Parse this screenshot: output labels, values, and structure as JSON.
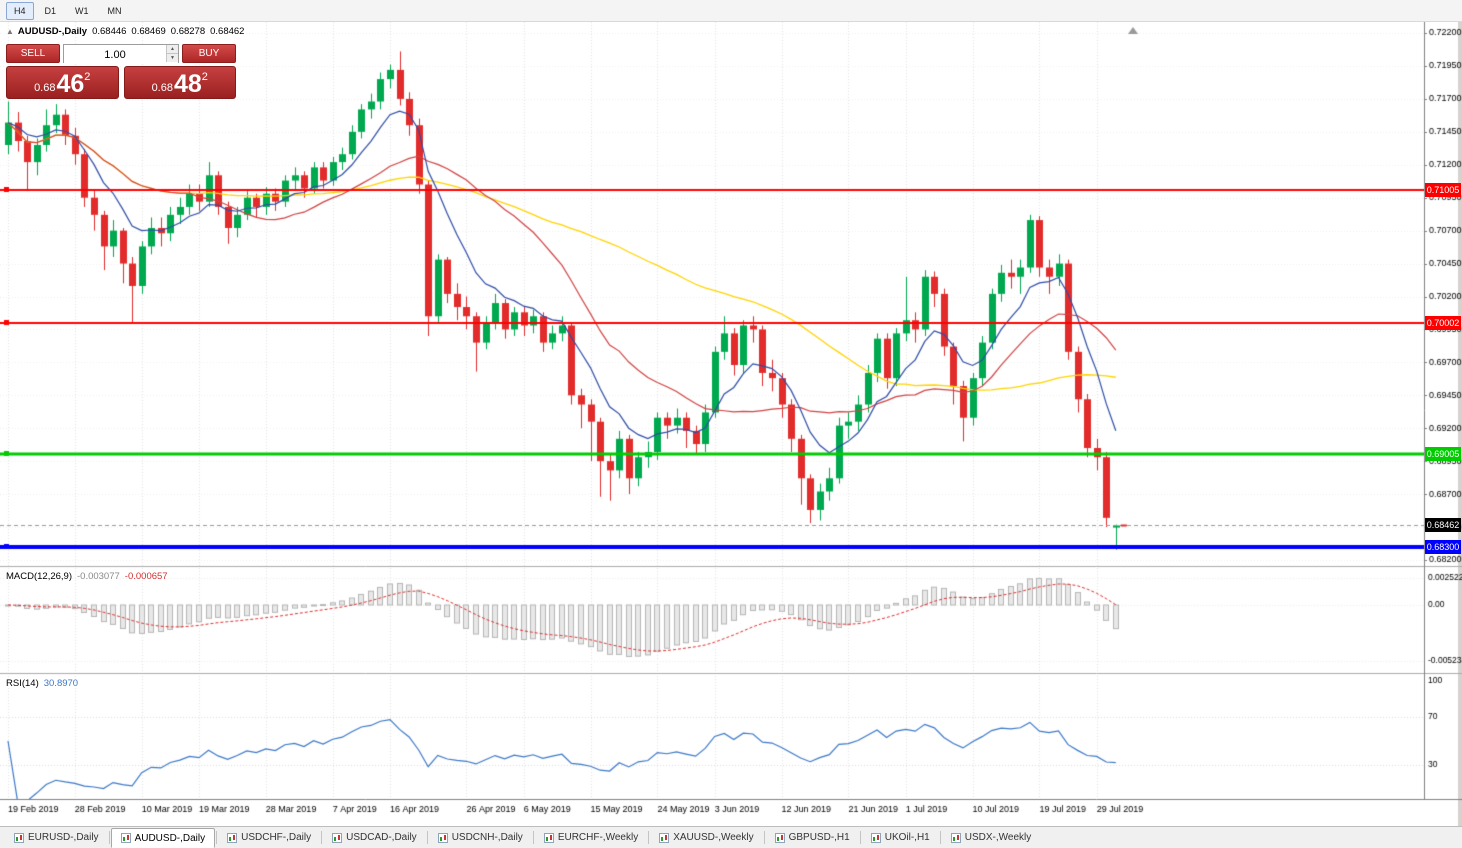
{
  "toolbar": {
    "timeframes": [
      "H4",
      "D1",
      "W1",
      "MN"
    ],
    "active": "H4"
  },
  "chart_header": {
    "collapse_icon": "▲",
    "symbol": "AUDUSD-,Daily",
    "open": "0.68446",
    "high": "0.68469",
    "low": "0.68278",
    "close": "0.68462"
  },
  "trade_panel": {
    "sell_label": "SELL",
    "buy_label": "BUY",
    "volume": "1.00",
    "spinner_up": "▲",
    "spinner_down": "▼",
    "sell_price": {
      "prefix": "0.68",
      "big": "46",
      "sup": "2"
    },
    "buy_price": {
      "prefix": "0.68",
      "big": "48",
      "sup": "2"
    }
  },
  "indicators": {
    "macd": {
      "label": "MACD(12,26,9)",
      "value_main": "-0.003077",
      "value_signal": "-0.000657"
    },
    "rsi": {
      "label": "RSI(14)",
      "value": "30.8970"
    }
  },
  "tabs": {
    "items": [
      "EURUSD-,Daily",
      "AUDUSD-,Daily",
      "USDCHF-,Daily",
      "USDCAD-,Daily",
      "USDCNH-,Daily",
      "EURCHF-,Weekly",
      "XAUUSD-,Weekly",
      "GBPUSD-,H1",
      "UKOil-,H1",
      "USDX-,Weekly"
    ],
    "active": "AUDUSD-,Daily"
  },
  "chart_data": {
    "type": "candlestick",
    "symbol": "AUDUSD",
    "timeframe": "Daily",
    "bull_color": "#00A94F",
    "bear_color": "#E22C2C",
    "y_ticks": [
      "0.72200",
      "0.71950",
      "0.71700",
      "0.71450",
      "0.71200",
      "0.70950",
      "0.70700",
      "0.70450",
      "0.70200",
      "0.69950",
      "0.69700",
      "0.69450",
      "0.69200",
      "0.68950",
      "0.68700",
      "0.68450",
      "0.68200"
    ],
    "x_labels": [
      [
        0,
        "19 Feb 2019"
      ],
      [
        7,
        "28 Feb 2019"
      ],
      [
        14,
        "10 Mar 2019"
      ],
      [
        20,
        "19 Mar 2019"
      ],
      [
        27,
        "28 Mar 2019"
      ],
      [
        34,
        "7 Apr 2019"
      ],
      [
        40,
        "16 Apr 2019"
      ],
      [
        48,
        "26 Apr 2019"
      ],
      [
        54,
        "6 May 2019"
      ],
      [
        61,
        "15 May 2019"
      ],
      [
        68,
        "24 May 2019"
      ],
      [
        74,
        "3 Jun 2019"
      ],
      [
        81,
        "12 Jun 2019"
      ],
      [
        88,
        "21 Jun 2019"
      ],
      [
        94,
        "1 Jul 2019"
      ],
      [
        101,
        "10 Jul 2019"
      ],
      [
        108,
        "19 Jul 2019"
      ],
      [
        114,
        "29 Jul 2019"
      ]
    ],
    "levels": [
      {
        "price": 0.71005,
        "label": "0.71005",
        "color": "#FF0000",
        "width": 2
      },
      {
        "price": 0.70002,
        "label": "0.70002",
        "color": "#FF0000",
        "width": 2
      },
      {
        "price": 0.69005,
        "label": "0.69005",
        "color": "#00CC00",
        "width": 3
      },
      {
        "price": 0.683,
        "label": "0.68300",
        "color": "#0000FF",
        "width": 4
      }
    ],
    "current_price": {
      "value": 0.68462,
      "label": "0.68462",
      "color": "#000000"
    },
    "moving_averages": [
      {
        "period": 50,
        "method": "sma",
        "color": "#FFD400",
        "width": 1.3
      },
      {
        "period": 20,
        "method": "sma",
        "color": "#D04343",
        "width": 1.2
      },
      {
        "period": 8,
        "method": "ema",
        "color": "#2E4DA7",
        "width": 1.2
      }
    ],
    "macd_axis": [
      {
        "v": 0.002522,
        "label": "0.002522"
      },
      {
        "v": 0,
        "label": "0.00"
      },
      {
        "v": -0.005234,
        "label": "-0.005234"
      }
    ],
    "rsi_axis": [
      {
        "v": 100,
        "label": "100"
      },
      {
        "v": 70,
        "label": "70"
      },
      {
        "v": 30,
        "label": "30"
      }
    ],
    "macd_params": {
      "fast": 12,
      "slow": 26,
      "signal": 9
    },
    "rsi_period": 14,
    "candles": [
      [
        0.7135,
        0.7168,
        0.7128,
        0.7152
      ],
      [
        0.7152,
        0.716,
        0.713,
        0.7138
      ],
      [
        0.7138,
        0.7142,
        0.71,
        0.7122
      ],
      [
        0.7122,
        0.714,
        0.7112,
        0.7135
      ],
      [
        0.7135,
        0.7162,
        0.713,
        0.715
      ],
      [
        0.715,
        0.7166,
        0.7144,
        0.7158
      ],
      [
        0.7158,
        0.7162,
        0.7135,
        0.7142
      ],
      [
        0.7142,
        0.7148,
        0.712,
        0.7128
      ],
      [
        0.7128,
        0.7132,
        0.7088,
        0.7095
      ],
      [
        0.7095,
        0.71,
        0.707,
        0.7082
      ],
      [
        0.7082,
        0.7085,
        0.704,
        0.7058
      ],
      [
        0.7058,
        0.7078,
        0.705,
        0.707
      ],
      [
        0.707,
        0.7072,
        0.703,
        0.7045
      ],
      [
        0.7045,
        0.705,
        0.7,
        0.7028
      ],
      [
        0.7028,
        0.7062,
        0.7022,
        0.7058
      ],
      [
        0.7058,
        0.708,
        0.7052,
        0.7072
      ],
      [
        0.7072,
        0.708,
        0.7058,
        0.7068
      ],
      [
        0.7068,
        0.7088,
        0.7062,
        0.7082
      ],
      [
        0.7082,
        0.7095,
        0.7075,
        0.7088
      ],
      [
        0.7088,
        0.7105,
        0.7082,
        0.7098
      ],
      [
        0.7098,
        0.7105,
        0.7085,
        0.7092
      ],
      [
        0.7092,
        0.7122,
        0.7088,
        0.7112
      ],
      [
        0.7112,
        0.7115,
        0.7082,
        0.7088
      ],
      [
        0.7088,
        0.7092,
        0.706,
        0.7072
      ],
      [
        0.7072,
        0.7088,
        0.7065,
        0.7082
      ],
      [
        0.7082,
        0.71,
        0.7078,
        0.7095
      ],
      [
        0.7095,
        0.7098,
        0.708,
        0.7088
      ],
      [
        0.7088,
        0.7103,
        0.7082,
        0.7098
      ],
      [
        0.7098,
        0.7102,
        0.7085,
        0.7092
      ],
      [
        0.7092,
        0.7112,
        0.7088,
        0.7108
      ],
      [
        0.7108,
        0.7118,
        0.71,
        0.7112
      ],
      [
        0.7112,
        0.7115,
        0.7095,
        0.7102
      ],
      [
        0.7102,
        0.7122,
        0.7098,
        0.7118
      ],
      [
        0.7118,
        0.7122,
        0.7102,
        0.7108
      ],
      [
        0.7108,
        0.7126,
        0.7104,
        0.7122
      ],
      [
        0.7122,
        0.7133,
        0.7116,
        0.7128
      ],
      [
        0.7128,
        0.715,
        0.7124,
        0.7145
      ],
      [
        0.7145,
        0.7166,
        0.714,
        0.7162
      ],
      [
        0.7162,
        0.7174,
        0.7155,
        0.7168
      ],
      [
        0.7168,
        0.719,
        0.7162,
        0.7185
      ],
      [
        0.7185,
        0.7196,
        0.7178,
        0.7192
      ],
      [
        0.7192,
        0.7206,
        0.7165,
        0.717
      ],
      [
        0.717,
        0.7175,
        0.7142,
        0.715
      ],
      [
        0.715,
        0.7155,
        0.7098,
        0.7105
      ],
      [
        0.7105,
        0.7108,
        0.699,
        0.7005
      ],
      [
        0.7005,
        0.7052,
        0.7,
        0.7048
      ],
      [
        0.7048,
        0.705,
        0.7015,
        0.7022
      ],
      [
        0.7022,
        0.703,
        0.7002,
        0.7012
      ],
      [
        0.7012,
        0.702,
        0.6995,
        0.7005
      ],
      [
        0.7005,
        0.7008,
        0.6963,
        0.6985
      ],
      [
        0.6985,
        0.7005,
        0.698,
        0.7
      ],
      [
        0.7,
        0.7022,
        0.6995,
        0.7015
      ],
      [
        0.7015,
        0.7018,
        0.6988,
        0.6995
      ],
      [
        0.6995,
        0.7012,
        0.699,
        0.7008
      ],
      [
        0.7008,
        0.7012,
        0.699,
        0.6998
      ],
      [
        0.6998,
        0.701,
        0.6992,
        0.7005
      ],
      [
        0.7005,
        0.7008,
        0.6978,
        0.6985
      ],
      [
        0.6985,
        0.6998,
        0.698,
        0.6992
      ],
      [
        0.6992,
        0.7005,
        0.6986,
        0.6998
      ],
      [
        0.6998,
        0.7,
        0.6938,
        0.6945
      ],
      [
        0.6945,
        0.695,
        0.692,
        0.6938
      ],
      [
        0.6938,
        0.6942,
        0.6895,
        0.6925
      ],
      [
        0.6925,
        0.6928,
        0.6868,
        0.6895
      ],
      [
        0.6895,
        0.69,
        0.6865,
        0.6888
      ],
      [
        0.6888,
        0.6918,
        0.6882,
        0.6912
      ],
      [
        0.6912,
        0.6915,
        0.687,
        0.6882
      ],
      [
        0.6882,
        0.6902,
        0.6876,
        0.6898
      ],
      [
        0.6898,
        0.691,
        0.689,
        0.6902
      ],
      [
        0.6902,
        0.6932,
        0.6896,
        0.6928
      ],
      [
        0.6928,
        0.6932,
        0.6912,
        0.6922
      ],
      [
        0.6922,
        0.6935,
        0.6916,
        0.6928
      ],
      [
        0.6928,
        0.6932,
        0.6905,
        0.6918
      ],
      [
        0.6918,
        0.6922,
        0.69,
        0.6908
      ],
      [
        0.6908,
        0.6938,
        0.6902,
        0.6932
      ],
      [
        0.6932,
        0.6982,
        0.6928,
        0.6978
      ],
      [
        0.6978,
        0.7005,
        0.6972,
        0.6992
      ],
      [
        0.6992,
        0.6996,
        0.696,
        0.6968
      ],
      [
        0.6968,
        0.7002,
        0.6962,
        0.6998
      ],
      [
        0.6998,
        0.7005,
        0.6985,
        0.6995
      ],
      [
        0.6995,
        0.6998,
        0.6952,
        0.6962
      ],
      [
        0.6962,
        0.6972,
        0.6948,
        0.6958
      ],
      [
        0.6958,
        0.6962,
        0.6928,
        0.6938
      ],
      [
        0.6938,
        0.6942,
        0.6902,
        0.6912
      ],
      [
        0.6912,
        0.6915,
        0.6862,
        0.6882
      ],
      [
        0.6882,
        0.6885,
        0.6848,
        0.6858
      ],
      [
        0.6858,
        0.6878,
        0.685,
        0.6872
      ],
      [
        0.6872,
        0.689,
        0.6865,
        0.6882
      ],
      [
        0.6882,
        0.6928,
        0.6878,
        0.6922
      ],
      [
        0.6922,
        0.6932,
        0.6912,
        0.6925
      ],
      [
        0.6925,
        0.6945,
        0.6918,
        0.6938
      ],
      [
        0.6938,
        0.6968,
        0.6932,
        0.6962
      ],
      [
        0.6962,
        0.6992,
        0.6955,
        0.6988
      ],
      [
        0.6988,
        0.6992,
        0.695,
        0.6958
      ],
      [
        0.6958,
        0.6996,
        0.6952,
        0.6992
      ],
      [
        0.6992,
        0.7035,
        0.6986,
        0.7002
      ],
      [
        0.7002,
        0.7008,
        0.6985,
        0.6995
      ],
      [
        0.6995,
        0.704,
        0.699,
        0.7035
      ],
      [
        0.7035,
        0.7039,
        0.7012,
        0.7022
      ],
      [
        0.7022,
        0.7026,
        0.6975,
        0.6982
      ],
      [
        0.6982,
        0.6985,
        0.6938,
        0.6952
      ],
      [
        0.6952,
        0.6956,
        0.691,
        0.6928
      ],
      [
        0.6928,
        0.6962,
        0.6922,
        0.6958
      ],
      [
        0.6958,
        0.699,
        0.6952,
        0.6985
      ],
      [
        0.6985,
        0.7026,
        0.698,
        0.7022
      ],
      [
        0.7022,
        0.7044,
        0.7016,
        0.7038
      ],
      [
        0.7038,
        0.7048,
        0.7026,
        0.7035
      ],
      [
        0.7035,
        0.7048,
        0.7022,
        0.7042
      ],
      [
        0.7042,
        0.7082,
        0.7038,
        0.7078
      ],
      [
        0.7078,
        0.7081,
        0.7035,
        0.7042
      ],
      [
        0.7042,
        0.7048,
        0.7022,
        0.7035
      ],
      [
        0.7035,
        0.7052,
        0.7028,
        0.7045
      ],
      [
        0.7045,
        0.7048,
        0.6972,
        0.6978
      ],
      [
        0.6978,
        0.6982,
        0.6932,
        0.6942
      ],
      [
        0.6942,
        0.6946,
        0.6898,
        0.6905
      ],
      [
        0.6905,
        0.6912,
        0.6888,
        0.6898
      ],
      [
        0.6898,
        0.6902,
        0.6845,
        0.6852
      ],
      [
        0.68446,
        0.68469,
        0.68278,
        0.68462
      ]
    ]
  }
}
